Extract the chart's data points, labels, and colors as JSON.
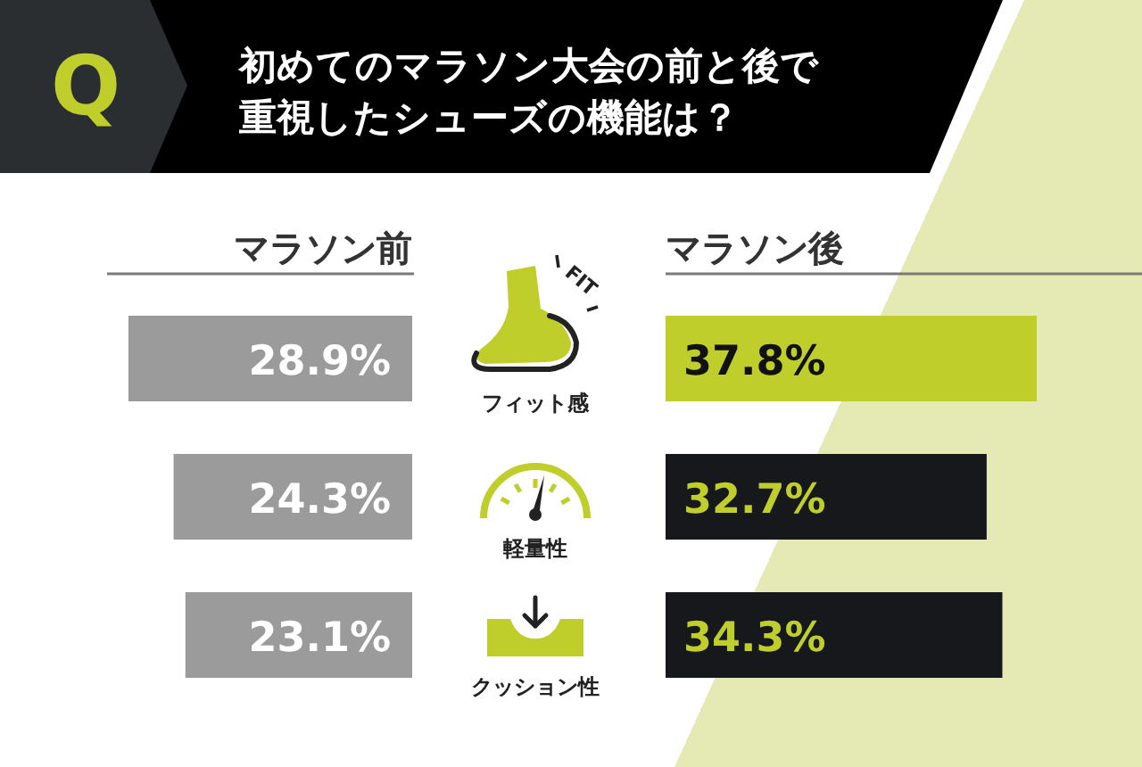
{
  "chart_data": [
    {
      "type": "bar",
      "orientation": "horizontal",
      "title": "初めてのマラソン大会の前と後で重視したシューズの機能は？",
      "categories": [
        "フィット感",
        "軽量性",
        "クッション性"
      ],
      "series": [
        {
          "name": "マラソン前",
          "color": "#9b9b9b",
          "values": [
            28.9,
            24.3,
            23.1
          ],
          "value_labels": [
            "28.9%",
            "24.3%",
            "23.1%"
          ]
        }
      ],
      "annotations": [
        "Q",
        "FIT"
      ]
    },
    {
      "type": "bar",
      "orientation": "horizontal",
      "categories": [
        null,
        null,
        null
      ],
      "tick_labels": false,
      "series": [
        {
          "name": "マラソン後",
          "colors": [
            "#bfce2b",
            "#16181b",
            "#16181b"
          ],
          "values": [
            37.8,
            32.7,
            34.3
          ],
          "value_labels": [
            "37.8%",
            "32.7%",
            "34.3%"
          ]
        }
      ]
    }
  ]
}
